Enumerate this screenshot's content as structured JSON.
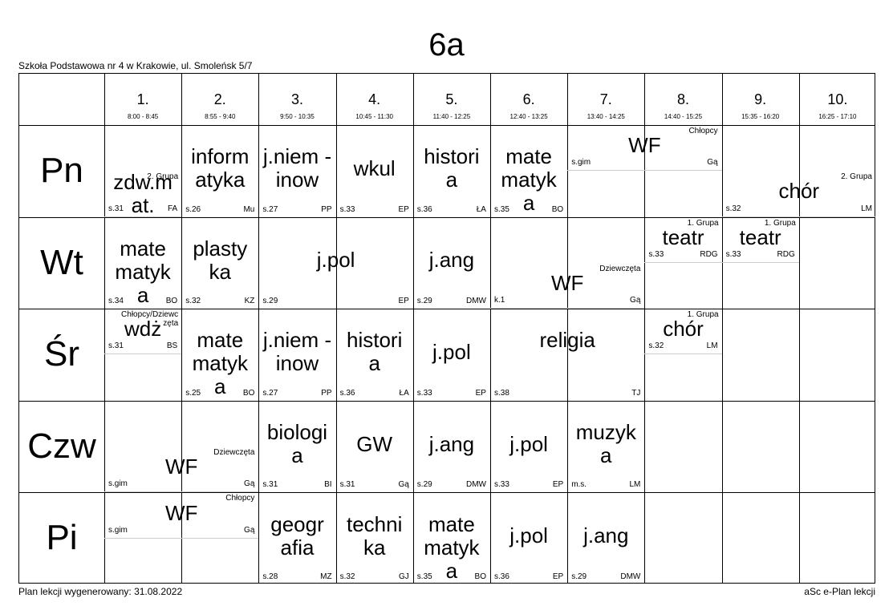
{
  "class_name": "6a",
  "school": "Szkoła Podstawowa nr 4 w Krakowie, ul. Smoleńsk 5/7",
  "footer_left": "Plan lekcji wygenerowany: 31.08.2022",
  "footer_right": "aSc e-Plan lekcji",
  "periods": [
    {
      "num": "1.",
      "time": "8:00 - 8:45"
    },
    {
      "num": "2.",
      "time": "8:55 - 9:40"
    },
    {
      "num": "3.",
      "time": "9:50 - 10:35"
    },
    {
      "num": "4.",
      "time": "10:45 - 11:30"
    },
    {
      "num": "5.",
      "time": "11:40 - 12:25"
    },
    {
      "num": "6.",
      "time": "12:40 - 13:25"
    },
    {
      "num": "7.",
      "time": "13:40 - 14:25"
    },
    {
      "num": "8.",
      "time": "14:40 - 15:25"
    },
    {
      "num": "9.",
      "time": "15:35 - 16:20"
    },
    {
      "num": "10.",
      "time": "16:25 - 17:10"
    }
  ],
  "days": [
    "Pn",
    "Wt",
    "Śr",
    "Czw",
    "Pi"
  ],
  "lessons": [
    {
      "day": 0,
      "p": 0,
      "span": 1,
      "top": 0.5,
      "h": 0.5,
      "subject": "zdw.m at.",
      "room": "s.31",
      "teacher": "FA",
      "group": "2. Grupa"
    },
    {
      "day": 0,
      "p": 1,
      "span": 1,
      "top": 0,
      "h": 1,
      "subject": "inform atyka",
      "room": "s.26",
      "teacher": "Mu",
      "group": ""
    },
    {
      "day": 0,
      "p": 2,
      "span": 1,
      "top": 0,
      "h": 1,
      "subject": "j.niem -inow",
      "room": "s.27",
      "teacher": "PP",
      "group": ""
    },
    {
      "day": 0,
      "p": 3,
      "span": 1,
      "top": 0,
      "h": 1,
      "subject": "wkul",
      "room": "s.33",
      "teacher": "EP",
      "group": ""
    },
    {
      "day": 0,
      "p": 4,
      "span": 1,
      "top": 0,
      "h": 1,
      "subject": "histori a",
      "room": "s.36",
      "teacher": "ŁA",
      "group": ""
    },
    {
      "day": 0,
      "p": 5,
      "span": 1,
      "top": 0,
      "h": 1,
      "subject": "mate matyk a",
      "room": "s.35",
      "teacher": "BO",
      "group": ""
    },
    {
      "day": 0,
      "p": 6,
      "span": 2,
      "top": 0,
      "h": 0.5,
      "subject": "WF",
      "room": "s.gim",
      "teacher": "Gą",
      "group": "Chłopcy"
    },
    {
      "day": 0,
      "p": 8,
      "span": 2,
      "top": 0.5,
      "h": 0.5,
      "subject": "chór",
      "room": "s.32",
      "teacher": "LM",
      "group": "2. Grupa"
    },
    {
      "day": 1,
      "p": 0,
      "span": 1,
      "top": 0,
      "h": 1,
      "subject": "mate matyk a",
      "room": "s.34",
      "teacher": "BO",
      "group": ""
    },
    {
      "day": 1,
      "p": 1,
      "span": 1,
      "top": 0,
      "h": 1,
      "subject": "plasty ka",
      "room": "s.32",
      "teacher": "KZ",
      "group": ""
    },
    {
      "day": 1,
      "p": 2,
      "span": 2,
      "top": 0,
      "h": 1,
      "subject": "j.pol",
      "room": "s.29",
      "teacher": "EP",
      "group": ""
    },
    {
      "day": 1,
      "p": 4,
      "span": 1,
      "top": 0,
      "h": 1,
      "subject": "j.ang",
      "room": "s.29",
      "teacher": "DMW",
      "group": ""
    },
    {
      "day": 1,
      "p": 5,
      "span": 2,
      "top": 0.5,
      "h": 0.5,
      "subject": "WF",
      "room": "k.1",
      "teacher": "Gą",
      "group": "Dziewczęta"
    },
    {
      "day": 1,
      "p": 7,
      "span": 1,
      "top": 0,
      "h": 0.5,
      "subject": "teatr",
      "room": "s.33",
      "teacher": "RDG",
      "group": "1. Grupa"
    },
    {
      "day": 1,
      "p": 8,
      "span": 1,
      "top": 0,
      "h": 0.5,
      "subject": "teatr",
      "room": "s.33",
      "teacher": "RDG",
      "group": "1. Grupa"
    },
    {
      "day": 2,
      "p": 0,
      "span": 1,
      "top": 0,
      "h": 0.5,
      "subject": "wdż",
      "room": "s.31",
      "teacher": "BS",
      "group": "Chłopcy/Dziewc zęta"
    },
    {
      "day": 2,
      "p": 1,
      "span": 1,
      "top": 0,
      "h": 1,
      "subject": "mate matyk a",
      "room": "s.25",
      "teacher": "BO",
      "group": ""
    },
    {
      "day": 2,
      "p": 2,
      "span": 1,
      "top": 0,
      "h": 1,
      "subject": "j.niem -inow",
      "room": "s.27",
      "teacher": "PP",
      "group": ""
    },
    {
      "day": 2,
      "p": 3,
      "span": 1,
      "top": 0,
      "h": 1,
      "subject": "histori a",
      "room": "s.36",
      "teacher": "ŁA",
      "group": ""
    },
    {
      "day": 2,
      "p": 4,
      "span": 1,
      "top": 0,
      "h": 1,
      "subject": "j.pol",
      "room": "s.33",
      "teacher": "EP",
      "group": ""
    },
    {
      "day": 2,
      "p": 5,
      "span": 2,
      "top": 0,
      "h": 1,
      "subject": "religia",
      "room": "s.38",
      "teacher": "TJ",
      "group": ""
    },
    {
      "day": 2,
      "p": 7,
      "span": 1,
      "top": 0,
      "h": 0.5,
      "subject": "chór",
      "room": "s.32",
      "teacher": "LM",
      "group": "1. Grupa"
    },
    {
      "day": 3,
      "p": 0,
      "span": 2,
      "top": 0.5,
      "h": 0.5,
      "subject": "WF",
      "room": "s.gim",
      "teacher": "Gą",
      "group": "Dziewczęta"
    },
    {
      "day": 3,
      "p": 2,
      "span": 1,
      "top": 0,
      "h": 1,
      "subject": "biologi a",
      "room": "s.31",
      "teacher": "BI",
      "group": ""
    },
    {
      "day": 3,
      "p": 3,
      "span": 1,
      "top": 0,
      "h": 1,
      "subject": "GW",
      "room": "s.31",
      "teacher": "Gą",
      "group": ""
    },
    {
      "day": 3,
      "p": 4,
      "span": 1,
      "top": 0,
      "h": 1,
      "subject": "j.ang",
      "room": "s.29",
      "teacher": "DMW",
      "group": ""
    },
    {
      "day": 3,
      "p": 5,
      "span": 1,
      "top": 0,
      "h": 1,
      "subject": "j.pol",
      "room": "s.33",
      "teacher": "EP",
      "group": ""
    },
    {
      "day": 3,
      "p": 6,
      "span": 1,
      "top": 0,
      "h": 1,
      "subject": "muzyk a",
      "room": "m.s.",
      "teacher": "LM",
      "group": ""
    },
    {
      "day": 4,
      "p": 0,
      "span": 2,
      "top": 0,
      "h": 0.5,
      "subject": "WF",
      "room": "s.gim",
      "teacher": "Gą",
      "group": "Chłopcy"
    },
    {
      "day": 4,
      "p": 2,
      "span": 1,
      "top": 0,
      "h": 1,
      "subject": "geogr afia",
      "room": "s.28",
      "teacher": "MZ",
      "group": ""
    },
    {
      "day": 4,
      "p": 3,
      "span": 1,
      "top": 0,
      "h": 1,
      "subject": "techni ka",
      "room": "s.32",
      "teacher": "GJ",
      "group": ""
    },
    {
      "day": 4,
      "p": 4,
      "span": 1,
      "top": 0,
      "h": 1,
      "subject": "mate matyk a",
      "room": "s.35",
      "teacher": "BO",
      "group": ""
    },
    {
      "day": 4,
      "p": 5,
      "span": 1,
      "top": 0,
      "h": 1,
      "subject": "j.pol",
      "room": "s.36",
      "teacher": "EP",
      "group": ""
    },
    {
      "day": 4,
      "p": 6,
      "span": 1,
      "top": 0,
      "h": 1,
      "subject": "j.ang",
      "room": "s.29",
      "teacher": "DMW",
      "group": ""
    }
  ]
}
